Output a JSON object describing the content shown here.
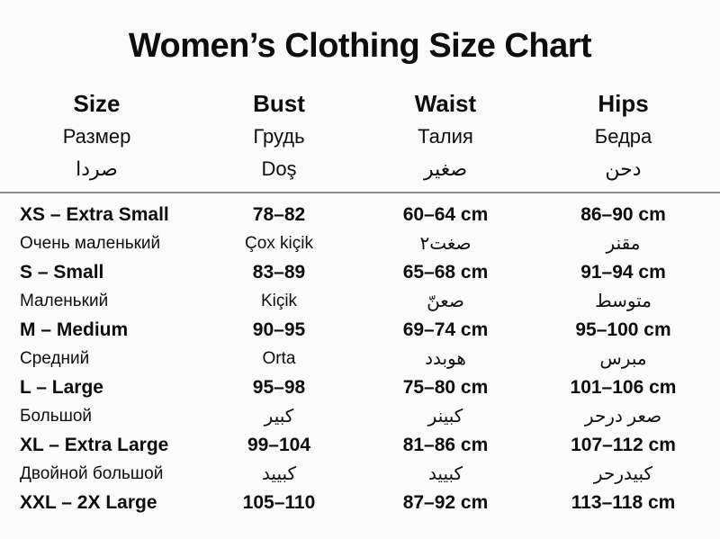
{
  "title": "Women’s Clothing Size Chart",
  "colors": {
    "text": "#0d0d0d",
    "background": "#fbfbfb",
    "divider": "#8d8d8d"
  },
  "columns": [
    {
      "en": "Size",
      "ru": "Размер",
      "third": "صردا"
    },
    {
      "en": "Bust",
      "ru": "Грудь",
      "third": "Doş"
    },
    {
      "en": "Waist",
      "ru": "Талия",
      "third": "صغير"
    },
    {
      "en": "Hips",
      "ru": "Бедра",
      "third": "دحن"
    }
  ],
  "rows": [
    {
      "cells": [
        {
          "main": "XS – Extra Small",
          "sub": "Очень маленький"
        },
        {
          "main": "78–82",
          "sub": "Çox kiçik"
        },
        {
          "main": "60–64 cm",
          "sub": "صغت٢"
        },
        {
          "main": "86–90 cm",
          "sub": "مقنر"
        }
      ]
    },
    {
      "cells": [
        {
          "main": "S – Small",
          "sub": "Маленький"
        },
        {
          "main": "83–89",
          "sub": "Kiçik"
        },
        {
          "main": "65–68 cm",
          "sub": "صعنّ"
        },
        {
          "main": "91–94 cm",
          "sub": "متوسط"
        }
      ]
    },
    {
      "cells": [
        {
          "main": "M – Medium",
          "sub": "Средний"
        },
        {
          "main": "90–95",
          "sub": "Orta"
        },
        {
          "main": "69–74 cm",
          "sub": "هوبدد"
        },
        {
          "main": "95–100 cm",
          "sub": "مبرس"
        }
      ]
    },
    {
      "cells": [
        {
          "main": "L – Large",
          "sub": "Большой"
        },
        {
          "main": "95–98",
          "sub": "كبير"
        },
        {
          "main": "75–80 cm",
          "sub": "كبينر"
        },
        {
          "main": "101–106 cm",
          "sub": "صعر درحر"
        }
      ]
    },
    {
      "cells": [
        {
          "main": "XL – Extra Large",
          "sub": "Двойной большой"
        },
        {
          "main": "99–104",
          "sub": "كبييد"
        },
        {
          "main": "81–86 cm",
          "sub": "كبييد"
        },
        {
          "main": "107–112 cm",
          "sub": "كبيدرحر"
        }
      ]
    },
    {
      "cells": [
        {
          "main": "XXL – 2X Large",
          "sub": ""
        },
        {
          "main": "105–110",
          "sub": ""
        },
        {
          "main": "87–92 cm",
          "sub": ""
        },
        {
          "main": "113–118 cm",
          "sub": ""
        }
      ]
    }
  ],
  "chart_data": {
    "type": "table",
    "title": "Women’s Clothing Size Chart",
    "columns": [
      "Size",
      "Bust",
      "Waist",
      "Hips"
    ],
    "column_translations": {
      "russian": [
        "Размер",
        "Грудь",
        "Талия",
        "Бедра"
      ],
      "other": [
        "صردا",
        "Doş",
        "صغير",
        "دحن"
      ]
    },
    "rows": [
      [
        "XS – Extra Small",
        "78–82",
        "60–64 cm",
        "86–90 cm"
      ],
      [
        "S – Small",
        "83–89",
        "65–68 cm",
        "91–94 cm"
      ],
      [
        "M – Medium",
        "90–95",
        "69–74 cm",
        "95–100 cm"
      ],
      [
        "L – Large",
        "95–98",
        "75–80 cm",
        "101–106 cm"
      ],
      [
        "XL – Extra Large",
        "99–104",
        "81–86 cm",
        "107–112 cm"
      ],
      [
        "XXL – 2X Large",
        "105–110",
        "87–92 cm",
        "113–118 cm"
      ]
    ]
  }
}
